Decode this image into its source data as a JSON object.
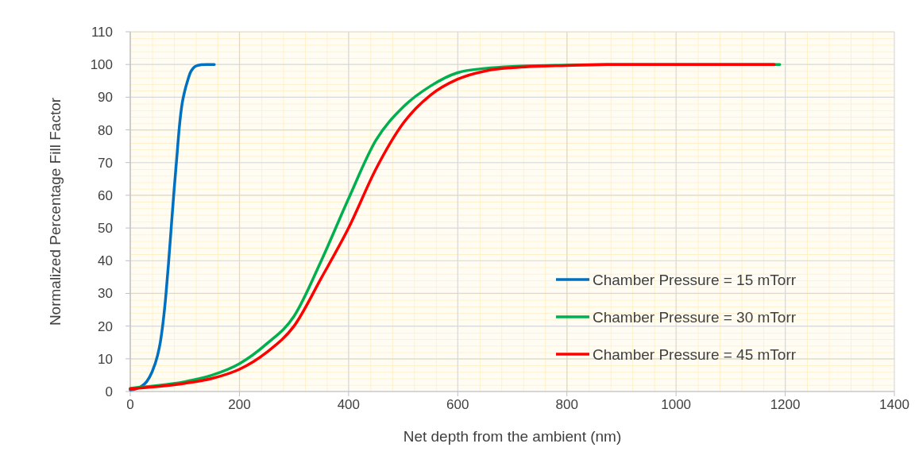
{
  "chart_data": {
    "type": "line",
    "xlabel": "Net depth from the ambient (nm)",
    "ylabel": "Normalized Percentage Fill Factor",
    "xlim": [
      0,
      1400
    ],
    "xticks": [
      0,
      200,
      400,
      600,
      800,
      1000,
      1200,
      1400
    ],
    "ylim": [
      0,
      110
    ],
    "yticks": [
      0,
      10,
      20,
      30,
      40,
      50,
      60,
      70,
      80,
      90,
      100,
      110
    ],
    "grid": true,
    "legend": "right",
    "marker": "none",
    "line_style": "solid",
    "series": [
      {
        "name": "Chamber Pressure = 15 mTorr",
        "color": "#0070c0",
        "x": [
          0,
          10,
          20,
          30,
          40,
          50,
          55,
          60,
          65,
          70,
          75,
          80,
          85,
          90,
          95,
          100,
          105,
          110,
          115,
          120,
          130,
          140,
          154
        ],
        "values": [
          0.5,
          0.8,
          1.5,
          3,
          6,
          11,
          15,
          21,
          29,
          39,
          50,
          61,
          71,
          81,
          88,
          92,
          95,
          97.5,
          98.8,
          99.5,
          99.9,
          100,
          100
        ]
      },
      {
        "name": "Chamber Pressure = 30 mTorr",
        "color": "#00b050",
        "x": [
          0,
          50,
          100,
          150,
          200,
          250,
          300,
          350,
          400,
          450,
          500,
          550,
          600,
          650,
          700,
          800,
          900,
          1000,
          1190
        ],
        "values": [
          1,
          1.8,
          3,
          5,
          8.5,
          14.6,
          23,
          40,
          59,
          76.8,
          87,
          93.4,
          97.5,
          98.8,
          99.4,
          99.8,
          100,
          100,
          100
        ]
      },
      {
        "name": "Chamber Pressure = 45 mTorr",
        "color": "#ff0000",
        "x": [
          0,
          50,
          100,
          150,
          200,
          250,
          300,
          350,
          400,
          450,
          500,
          550,
          600,
          650,
          700,
          800,
          900,
          1000,
          1180
        ],
        "values": [
          0.8,
          1.5,
          2.5,
          4,
          6.8,
          12,
          20,
          34.7,
          50,
          68,
          82,
          90.6,
          95.5,
          98,
          99,
          99.7,
          100,
          100,
          100
        ]
      }
    ]
  }
}
